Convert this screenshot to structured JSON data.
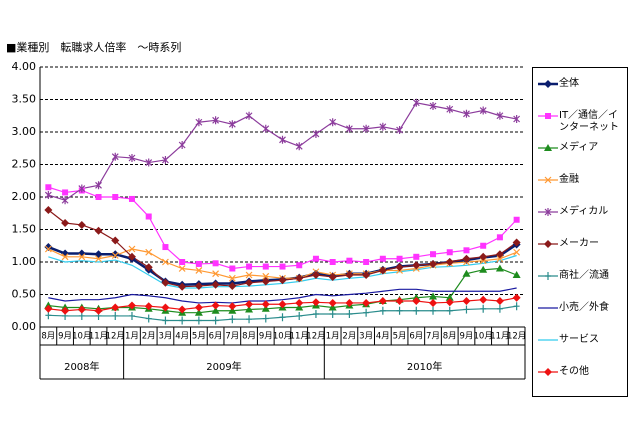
{
  "chart_data": {
    "type": "line",
    "title": "■業種別　転職求人倍率　～時系列",
    "categories": [
      "8月",
      "9月",
      "10月",
      "11月",
      "12月",
      "1月",
      "2月",
      "3月",
      "4月",
      "5月",
      "6月",
      "7月",
      "8月",
      "9月",
      "10月",
      "11月",
      "12月",
      "1月",
      "2月",
      "3月",
      "4月",
      "5月",
      "6月",
      "7月",
      "8月",
      "9月",
      "10月",
      "11月",
      "12月"
    ],
    "years": [
      "2008年",
      "2009年",
      "2010年"
    ],
    "ylim": [
      0,
      4
    ],
    "yticks": [
      {
        "value": 0,
        "label": "0.00"
      },
      {
        "value": 0.5,
        "label": "0.50"
      },
      {
        "value": 1,
        "label": "1.00"
      },
      {
        "value": 1.5,
        "label": "1.50"
      },
      {
        "value": 2,
        "label": "2.00"
      },
      {
        "value": 2.5,
        "label": "2.50"
      },
      {
        "value": 3,
        "label": "3.00"
      },
      {
        "value": 3.5,
        "label": "3.50"
      },
      {
        "value": 4,
        "label": "4.00"
      }
    ],
    "grid": true,
    "legend": "right",
    "series": [
      {
        "name": "全体",
        "color": "#0a1e6e",
        "marker": "diamond",
        "values": [
          1.23,
          1.13,
          1.13,
          1.12,
          1.12,
          1.05,
          0.88,
          0.7,
          0.65,
          0.66,
          0.67,
          0.67,
          0.7,
          0.72,
          0.73,
          0.76,
          0.82,
          0.78,
          0.82,
          0.82,
          0.88,
          0.93,
          0.95,
          0.97,
          1.0,
          1.03,
          1.07,
          1.1,
          1.27
        ]
      },
      {
        "name": "IT／通信／インターネット",
        "color": "#ff33ff",
        "marker": "square",
        "values": [
          2.15,
          2.07,
          2.1,
          2.0,
          2.0,
          1.97,
          1.7,
          1.23,
          1.0,
          0.97,
          0.98,
          0.9,
          0.93,
          0.93,
          0.93,
          0.95,
          1.05,
          1.0,
          1.02,
          1.0,
          1.05,
          1.05,
          1.08,
          1.12,
          1.15,
          1.18,
          1.25,
          1.38,
          1.65
        ]
      },
      {
        "name": "メディア",
        "color": "#1e8c1e",
        "marker": "triangle",
        "values": [
          0.33,
          0.3,
          0.3,
          0.28,
          0.3,
          0.3,
          0.28,
          0.25,
          0.22,
          0.22,
          0.25,
          0.25,
          0.27,
          0.28,
          0.3,
          0.3,
          0.33,
          0.3,
          0.33,
          0.35,
          0.4,
          0.42,
          0.45,
          0.47,
          0.45,
          0.82,
          0.88,
          0.9,
          0.8
        ]
      },
      {
        "name": "金融",
        "color": "#ff9933",
        "marker": "x",
        "values": [
          1.2,
          1.08,
          1.08,
          1.05,
          1.1,
          1.2,
          1.15,
          1.0,
          0.9,
          0.87,
          0.82,
          0.75,
          0.8,
          0.78,
          0.75,
          0.75,
          0.85,
          0.8,
          0.82,
          0.82,
          0.87,
          0.87,
          0.9,
          0.95,
          0.98,
          1.0,
          1.02,
          1.05,
          1.15
        ]
      },
      {
        "name": "メディカル",
        "color": "#8c3c9c",
        "marker": "star",
        "values": [
          2.03,
          1.95,
          2.13,
          2.18,
          2.62,
          2.6,
          2.53,
          2.57,
          2.8,
          3.15,
          3.18,
          3.12,
          3.25,
          3.05,
          2.88,
          2.78,
          2.97,
          3.15,
          3.05,
          3.05,
          3.08,
          3.03,
          3.45,
          3.4,
          3.35,
          3.28,
          3.33,
          3.25,
          3.2
        ]
      },
      {
        "name": "メーカー",
        "color": "#8b1a1a",
        "marker": "diamond",
        "values": [
          1.8,
          1.6,
          1.57,
          1.48,
          1.33,
          1.08,
          0.92,
          0.68,
          0.62,
          0.63,
          0.65,
          0.63,
          0.68,
          0.7,
          0.72,
          0.75,
          0.8,
          0.77,
          0.8,
          0.8,
          0.87,
          0.92,
          0.95,
          0.97,
          1.0,
          1.05,
          1.08,
          1.12,
          1.3
        ]
      },
      {
        "name": "商社／流通",
        "color": "#2a8c8c",
        "marker": "plus",
        "values": [
          0.18,
          0.17,
          0.17,
          0.17,
          0.17,
          0.17,
          0.13,
          0.1,
          0.1,
          0.1,
          0.1,
          0.12,
          0.12,
          0.13,
          0.15,
          0.17,
          0.2,
          0.2,
          0.2,
          0.22,
          0.25,
          0.25,
          0.25,
          0.25,
          0.25,
          0.27,
          0.28,
          0.28,
          0.32
        ]
      },
      {
        "name": "小売／外食",
        "color": "#1a1aa0",
        "marker": "none",
        "values": [
          0.45,
          0.4,
          0.42,
          0.42,
          0.45,
          0.5,
          0.48,
          0.45,
          0.4,
          0.37,
          0.38,
          0.37,
          0.4,
          0.4,
          0.42,
          0.45,
          0.5,
          0.48,
          0.5,
          0.52,
          0.55,
          0.58,
          0.58,
          0.55,
          0.55,
          0.55,
          0.55,
          0.55,
          0.6
        ]
      },
      {
        "name": "サービス",
        "color": "#33ccee",
        "marker": "none",
        "values": [
          1.08,
          1.0,
          1.02,
          1.0,
          1.03,
          0.95,
          0.8,
          0.65,
          0.6,
          0.6,
          0.62,
          0.62,
          0.63,
          0.65,
          0.67,
          0.7,
          0.75,
          0.72,
          0.75,
          0.77,
          0.82,
          0.85,
          0.88,
          0.92,
          0.93,
          0.95,
          0.98,
          1.02,
          1.1
        ]
      },
      {
        "name": "その他",
        "color": "#ee1111",
        "marker": "diamond",
        "values": [
          0.28,
          0.25,
          0.27,
          0.25,
          0.3,
          0.33,
          0.32,
          0.3,
          0.27,
          0.3,
          0.33,
          0.32,
          0.35,
          0.35,
          0.35,
          0.37,
          0.38,
          0.37,
          0.37,
          0.37,
          0.4,
          0.4,
          0.4,
          0.37,
          0.38,
          0.4,
          0.42,
          0.4,
          0.45
        ]
      }
    ]
  }
}
